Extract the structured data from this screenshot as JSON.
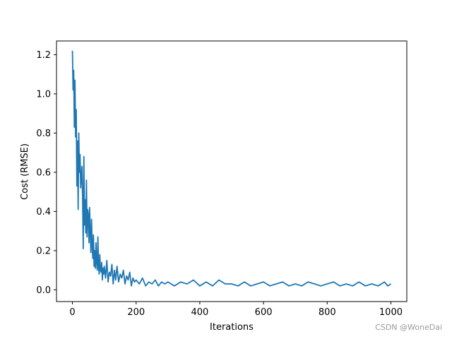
{
  "chart_data": {
    "type": "line",
    "title": "",
    "xlabel": "Iterations",
    "ylabel": "Cost (RMSE)",
    "xlim": [
      -50,
      1050
    ],
    "ylim": [
      -0.06,
      1.27
    ],
    "xticks": [
      0,
      200,
      400,
      600,
      800,
      1000
    ],
    "yticks": [
      0.0,
      0.2,
      0.4,
      0.6,
      0.8,
      1.0,
      1.2
    ],
    "xtick_labels": [
      "0",
      "200",
      "400",
      "600",
      "800",
      "1000"
    ],
    "ytick_labels": [
      "0.0",
      "0.2",
      "0.4",
      "0.6",
      "0.8",
      "1.0",
      "1.2"
    ],
    "grid": false,
    "series": [
      {
        "color": "#1f77b4",
        "x": [
          0,
          2,
          4,
          6,
          8,
          10,
          12,
          14,
          16,
          18,
          20,
          22,
          24,
          26,
          28,
          30,
          32,
          34,
          36,
          38,
          40,
          42,
          44,
          46,
          48,
          50,
          52,
          54,
          56,
          58,
          60,
          62,
          64,
          66,
          68,
          70,
          72,
          74,
          76,
          78,
          80,
          82,
          84,
          86,
          88,
          90,
          92,
          94,
          96,
          98,
          100,
          104,
          108,
          112,
          116,
          120,
          124,
          128,
          132,
          136,
          140,
          145,
          150,
          155,
          160,
          165,
          170,
          175,
          180,
          185,
          190,
          195,
          200,
          210,
          220,
          230,
          240,
          250,
          260,
          270,
          280,
          290,
          300,
          320,
          340,
          360,
          380,
          400,
          420,
          440,
          460,
          480,
          500,
          520,
          540,
          560,
          580,
          600,
          620,
          640,
          660,
          680,
          700,
          720,
          740,
          760,
          780,
          800,
          820,
          840,
          860,
          880,
          900,
          920,
          940,
          960,
          980,
          990,
          1000
        ],
        "values": [
          1.22,
          1.02,
          1.12,
          0.83,
          1.07,
          0.78,
          0.92,
          0.53,
          0.76,
          0.41,
          0.8,
          0.6,
          0.69,
          0.52,
          0.58,
          0.63,
          0.46,
          0.21,
          0.68,
          0.33,
          0.46,
          0.29,
          0.56,
          0.27,
          0.41,
          0.38,
          0.24,
          0.42,
          0.29,
          0.19,
          0.36,
          0.23,
          0.16,
          0.28,
          0.12,
          0.2,
          0.11,
          0.24,
          0.14,
          0.1,
          0.27,
          0.12,
          0.08,
          0.18,
          0.1,
          0.09,
          0.14,
          0.05,
          0.11,
          0.08,
          0.12,
          0.06,
          0.15,
          0.04,
          0.09,
          0.07,
          0.13,
          0.03,
          0.1,
          0.05,
          0.12,
          0.04,
          0.08,
          0.06,
          0.1,
          0.03,
          0.07,
          0.05,
          0.09,
          0.02,
          0.06,
          0.04,
          0.05,
          0.03,
          0.06,
          0.02,
          0.04,
          0.03,
          0.05,
          0.02,
          0.04,
          0.03,
          0.04,
          0.02,
          0.04,
          0.03,
          0.05,
          0.02,
          0.04,
          0.02,
          0.05,
          0.03,
          0.03,
          0.02,
          0.04,
          0.02,
          0.03,
          0.04,
          0.02,
          0.03,
          0.04,
          0.02,
          0.03,
          0.02,
          0.04,
          0.03,
          0.02,
          0.03,
          0.04,
          0.02,
          0.03,
          0.02,
          0.04,
          0.02,
          0.03,
          0.02,
          0.04,
          0.02,
          0.03
        ]
      }
    ]
  },
  "watermark": "CSDN @WoneDai"
}
